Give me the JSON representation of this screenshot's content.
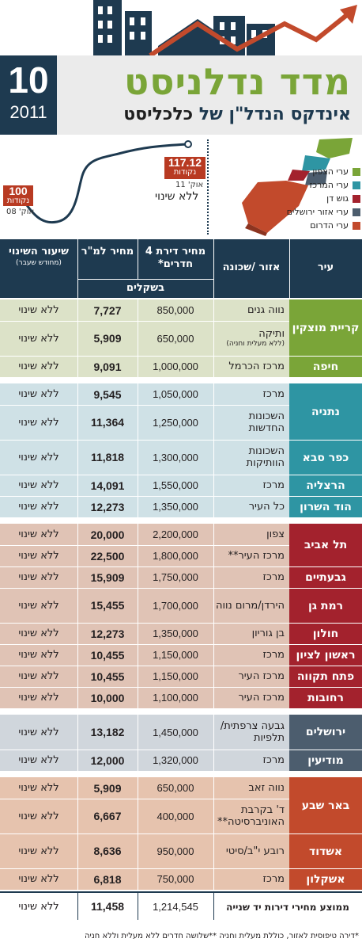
{
  "header": {
    "issue_number": "10",
    "issue_year": "2011",
    "title": "מדד נדלניסט",
    "subtitle": "אינדקס הנדל\"ן של",
    "brand": "כלכליסט"
  },
  "index_graph": {
    "start": {
      "value": "100",
      "unit": "נקודות",
      "date": "אוק' 08"
    },
    "end": {
      "value": "117.12",
      "unit": "נקודות",
      "date": "אוק' 11"
    },
    "change_label": "ללא שינוי"
  },
  "map_legend": [
    {
      "label": "ערי הצפון",
      "color": "#7aa538"
    },
    {
      "label": "ערי המרכז",
      "color": "#2e95a3"
    },
    {
      "label": "גוש דן",
      "color": "#a3222d"
    },
    {
      "label": "ערי אזור ירושלים",
      "color": "#4c5d6e"
    },
    {
      "label": "ערי הדרום",
      "color": "#c24a2c"
    }
  ],
  "table_header": {
    "city": "עיר",
    "neighborhood": "אזור /שכונה",
    "price": "מחיר דירת 4 חדרים*",
    "price_sqm": "מחיר למ\"ר",
    "change": "שיעור השינוי",
    "change_note": "(מחודש שעבר)",
    "currency": "בשקלים"
  },
  "chart_data": {
    "type": "table",
    "columns": [
      "עיר",
      "אזור /שכונה",
      "מחיר דירת 4 חדרים*",
      "מחיר למ\"ר",
      "שיעור השינוי"
    ],
    "groups": [
      {
        "region": "north",
        "row_color": "#dce2c8",
        "city_color": "#7aa538",
        "cities": [
          {
            "name": "קריית מוצקין",
            "rows": [
              {
                "area": "נווה גנים",
                "note": "",
                "price": "850,000",
                "sqm": "7,727",
                "change": "ללא שינוי"
              },
              {
                "area": "ותיקה",
                "note": "(ללא מעלית וחניה)",
                "price": "650,000",
                "sqm": "5,909",
                "change": "ללא שינוי"
              }
            ]
          },
          {
            "name": "חיפה",
            "rows": [
              {
                "area": "מרכז הכרמל",
                "note": "",
                "price": "1,000,000",
                "sqm": "9,091",
                "change": "ללא שינוי"
              }
            ]
          }
        ]
      },
      {
        "region": "center",
        "row_color": "#cfe1e6",
        "city_color": "#2e95a3",
        "cities": [
          {
            "name": "נתניה",
            "rows": [
              {
                "area": "מרכז",
                "note": "",
                "price": "1,050,000",
                "sqm": "9,545",
                "change": "ללא שינוי"
              },
              {
                "area": "השכונות החדשות",
                "note": "",
                "price": "1,250,000",
                "sqm": "11,364",
                "change": "ללא שינוי"
              }
            ]
          },
          {
            "name": "כפר סבא",
            "rows": [
              {
                "area": "השכונות הוותיקות",
                "note": "",
                "price": "1,300,000",
                "sqm": "11,818",
                "change": "ללא שינוי"
              }
            ]
          },
          {
            "name": "הרצליה",
            "rows": [
              {
                "area": "מרכז",
                "note": "",
                "price": "1,550,000",
                "sqm": "14,091",
                "change": "ללא שינוי"
              }
            ]
          },
          {
            "name": "הוד השרון",
            "rows": [
              {
                "area": "כל העיר",
                "note": "",
                "price": "1,350,000",
                "sqm": "12,273",
                "change": "ללא שינוי"
              }
            ]
          }
        ]
      },
      {
        "region": "gush_dan",
        "row_color": "#e0c3b5",
        "city_color": "#a3222d",
        "cities": [
          {
            "name": "תל אביב",
            "rows": [
              {
                "area": "צפון",
                "note": "",
                "price": "2,200,000",
                "sqm": "20,000",
                "change": "ללא שינוי"
              },
              {
                "area": "מרכז העיר**",
                "note": "",
                "price": "1,800,000",
                "sqm": "22,500",
                "change": "ללא שינוי"
              }
            ]
          },
          {
            "name": "גבעתיים",
            "rows": [
              {
                "area": "מרכז",
                "note": "",
                "price": "1,750,000",
                "sqm": "15,909",
                "change": "ללא שינוי"
              }
            ]
          },
          {
            "name": "רמת גן",
            "rows": [
              {
                "area": "הירדן/מרום נווה",
                "note": "",
                "price": "1,700,000",
                "sqm": "15,455",
                "change": "ללא שינוי"
              }
            ]
          },
          {
            "name": "חולון",
            "rows": [
              {
                "area": "בן גוריון",
                "note": "",
                "price": "1,350,000",
                "sqm": "12,273",
                "change": "ללא שינוי"
              }
            ]
          },
          {
            "name": "ראשון לציון",
            "rows": [
              {
                "area": "מרכז",
                "note": "",
                "price": "1,150,000",
                "sqm": "10,455",
                "change": "ללא שינוי"
              }
            ]
          },
          {
            "name": "פתח תקווה",
            "rows": [
              {
                "area": "מרכז העיר",
                "note": "",
                "price": "1,150,000",
                "sqm": "10,455",
                "change": "ללא שינוי"
              }
            ]
          },
          {
            "name": "רחובות",
            "rows": [
              {
                "area": "מרכז העיר",
                "note": "",
                "price": "1,100,000",
                "sqm": "10,000",
                "change": "ללא שינוי"
              }
            ]
          }
        ]
      },
      {
        "region": "jerusalem",
        "row_color": "#d0d6dc",
        "city_color": "#4c5d6e",
        "cities": [
          {
            "name": "ירושלים",
            "rows": [
              {
                "area": "גבעה צרפתית/ תלפיות",
                "note": "",
                "price": "1,450,000",
                "sqm": "13,182",
                "change": "ללא שינוי"
              }
            ]
          },
          {
            "name": "מודיעין",
            "rows": [
              {
                "area": "מרכז",
                "note": "",
                "price": "1,320,000",
                "sqm": "12,000",
                "change": "ללא שינוי"
              }
            ]
          }
        ]
      },
      {
        "region": "south",
        "row_color": "#e6c3ae",
        "city_color": "#c24a2c",
        "cities": [
          {
            "name": "באר שבע",
            "rows": [
              {
                "area": "נווה זאב",
                "note": "",
                "price": "650,000",
                "sqm": "5,909",
                "change": "ללא שינוי"
              },
              {
                "area": "ד' בקרבת האוניברסיטה**",
                "note": "",
                "price": "400,000",
                "sqm": "6,667",
                "change": "ללא שינוי"
              }
            ]
          },
          {
            "name": "אשדוד",
            "rows": [
              {
                "area": "רובע י\"ב/סיטי",
                "note": "",
                "price": "950,000",
                "sqm": "8,636",
                "change": "ללא שינוי"
              }
            ]
          },
          {
            "name": "אשקלון",
            "rows": [
              {
                "area": "מרכז",
                "note": "",
                "price": "750,000",
                "sqm": "6,818",
                "change": "ללא שינוי"
              }
            ]
          }
        ]
      }
    ],
    "average": {
      "label": "ממוצע מחירי דירות יד שנייה",
      "price": "1,214,545",
      "sqm": "11,458",
      "change": "ללא שינוי"
    }
  },
  "footnote": "*דירה טיפוסית לאזור, כוללת מעלית וחניה   **שלושה חדרים ללא מעלית וללא חניה"
}
